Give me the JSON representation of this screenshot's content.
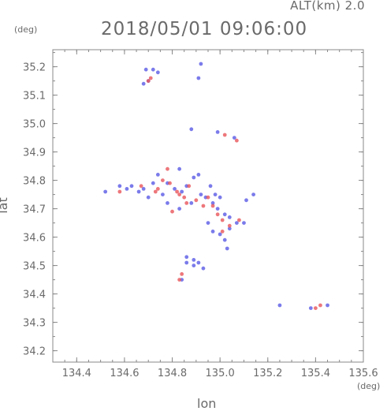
{
  "header": {
    "altitude_label": "ALT(km)  2.0",
    "datetime": "2018/05/01 09:06:00"
  },
  "chart_data": {
    "type": "scatter",
    "title": "2018/05/01 09:06:00",
    "subtitle": "ALT(km)  2.0",
    "xlabel": "lon",
    "ylabel": "lat",
    "x_unit": "(deg)",
    "y_unit": "(deg)",
    "xlim": [
      134.3,
      135.6
    ],
    "ylim": [
      34.16,
      35.26
    ],
    "x_ticks": [
      134.4,
      134.6,
      134.8,
      135.0,
      135.2,
      135.4,
      135.6
    ],
    "x_tick_labels": [
      "134.4",
      "134.6",
      "134.8",
      "135.0",
      "135.2",
      "135.4",
      "135.6"
    ],
    "y_ticks": [
      34.2,
      34.3,
      34.4,
      34.5,
      34.6,
      34.7,
      34.8,
      34.9,
      35.0,
      35.1,
      35.2
    ],
    "y_tick_labels": [
      "34.2",
      "34.3",
      "34.4",
      "34.5",
      "34.6",
      "34.7",
      "34.8",
      "34.9",
      "35.0",
      "35.1",
      "35.2"
    ],
    "grid": false,
    "colors": {
      "positive": "#e8555a",
      "negative": "#5a5ae6",
      "axis": "#888888"
    },
    "series": [
      {
        "color": "negative",
        "points": [
          [
            134.69,
            35.19
          ],
          [
            134.72,
            35.19
          ],
          [
            134.74,
            35.18
          ],
          [
            134.7,
            35.15
          ],
          [
            134.68,
            35.14
          ],
          [
            134.92,
            35.21
          ],
          [
            134.91,
            35.16
          ],
          [
            134.88,
            34.98
          ],
          [
            134.99,
            34.97
          ],
          [
            135.06,
            34.95
          ],
          [
            134.52,
            34.76
          ],
          [
            134.58,
            34.78
          ],
          [
            134.61,
            34.77
          ],
          [
            134.63,
            34.78
          ],
          [
            134.66,
            34.76
          ],
          [
            134.68,
            34.77
          ],
          [
            134.7,
            34.74
          ],
          [
            134.72,
            34.79
          ],
          [
            134.74,
            34.82
          ],
          [
            134.78,
            34.79
          ],
          [
            134.81,
            34.77
          ],
          [
            134.84,
            34.76
          ],
          [
            134.86,
            34.78
          ],
          [
            134.89,
            34.81
          ],
          [
            134.92,
            34.75
          ],
          [
            134.94,
            34.74
          ],
          [
            134.97,
            34.72
          ],
          [
            134.99,
            34.7
          ],
          [
            135.02,
            34.68
          ],
          [
            135.04,
            34.67
          ],
          [
            134.95,
            34.65
          ],
          [
            134.97,
            34.62
          ],
          [
            135.0,
            34.61
          ],
          [
            135.02,
            34.59
          ],
          [
            135.1,
            34.65
          ],
          [
            135.03,
            34.56
          ],
          [
            135.14,
            34.75
          ],
          [
            135.11,
            34.73
          ],
          [
            134.91,
            34.82
          ],
          [
            134.83,
            34.84
          ],
          [
            134.86,
            34.53
          ],
          [
            134.89,
            34.52
          ],
          [
            134.91,
            34.51
          ],
          [
            134.93,
            34.49
          ],
          [
            134.89,
            34.5
          ],
          [
            134.86,
            34.51
          ],
          [
            134.84,
            34.45
          ],
          [
            135.25,
            34.36
          ],
          [
            135.38,
            34.35
          ],
          [
            135.45,
            34.36
          ],
          [
            134.78,
            34.72
          ],
          [
            134.83,
            34.7
          ],
          [
            134.88,
            34.72
          ],
          [
            134.98,
            34.75
          ],
          [
            134.76,
            34.75
          ],
          [
            134.96,
            34.78
          ],
          [
            135.0,
            34.74
          ],
          [
            135.07,
            34.65
          ],
          [
            135.04,
            34.63
          ]
        ]
      },
      {
        "color": "positive",
        "points": [
          [
            134.71,
            35.16
          ],
          [
            134.7,
            35.15
          ],
          [
            134.58,
            34.76
          ],
          [
            134.67,
            34.78
          ],
          [
            134.73,
            34.76
          ],
          [
            134.74,
            34.77
          ],
          [
            134.76,
            34.8
          ],
          [
            134.78,
            34.84
          ],
          [
            134.79,
            34.79
          ],
          [
            134.82,
            34.76
          ],
          [
            134.85,
            34.74
          ],
          [
            134.86,
            34.72
          ],
          [
            134.9,
            34.73
          ],
          [
            134.93,
            34.71
          ],
          [
            134.97,
            34.71
          ],
          [
            134.99,
            34.68
          ],
          [
            135.01,
            34.66
          ],
          [
            135.01,
            34.62
          ],
          [
            135.04,
            34.64
          ],
          [
            135.08,
            34.66
          ],
          [
            134.8,
            34.69
          ],
          [
            134.83,
            34.75
          ],
          [
            134.84,
            34.47
          ],
          [
            134.83,
            34.45
          ],
          [
            135.07,
            34.94
          ],
          [
            135.02,
            34.96
          ],
          [
            135.4,
            34.35
          ],
          [
            135.42,
            34.36
          ],
          [
            134.87,
            34.78
          ],
          [
            134.95,
            34.74
          ]
        ]
      }
    ]
  }
}
